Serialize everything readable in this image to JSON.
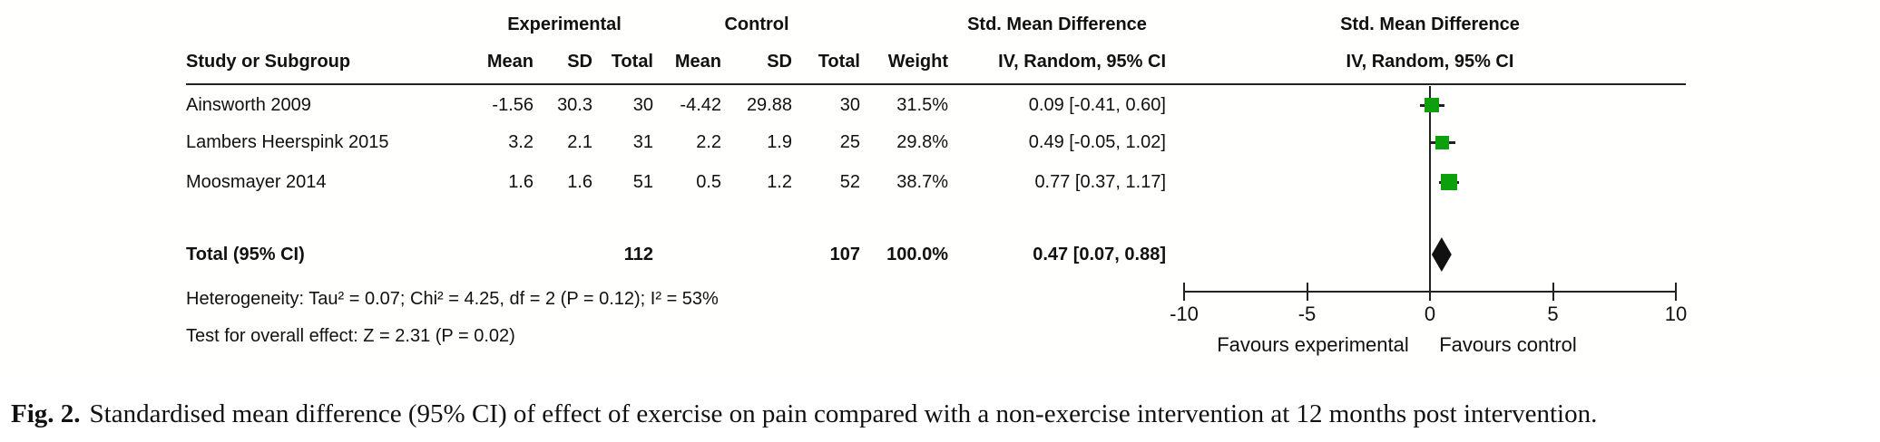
{
  "figure": {
    "table": {
      "group_headers": {
        "experimental": "Experimental",
        "control": "Control",
        "smd_text": "Std. Mean Difference"
      },
      "plot_header": {
        "line1": "Std. Mean Difference",
        "line2": "IV, Random, 95% CI"
      },
      "col_headers": {
        "study": "Study or Subgroup",
        "mean_e": "Mean",
        "sd_e": "SD",
        "total_e": "Total",
        "mean_c": "Mean",
        "sd_c": "SD",
        "total_c": "Total",
        "weight": "Weight",
        "ci": "IV, Random, 95% CI"
      },
      "rows": [
        {
          "study": "Ainsworth 2009",
          "mean_e": "-1.56",
          "sd_e": "30.3",
          "total_e": "30",
          "mean_c": "-4.42",
          "sd_c": "29.88",
          "total_c": "30",
          "weight": "31.5%",
          "ci": "0.09 [-0.41, 0.60]"
        },
        {
          "study": "Lambers Heerspink 2015",
          "mean_e": "3.2",
          "sd_e": "2.1",
          "total_e": "31",
          "mean_c": "2.2",
          "sd_c": "1.9",
          "total_c": "25",
          "weight": "29.8%",
          "ci": "0.49 [-0.05, 1.02]"
        },
        {
          "study": "Moosmayer 2014",
          "mean_e": "1.6",
          "sd_e": "1.6",
          "total_e": "51",
          "mean_c": "0.5",
          "sd_c": "1.2",
          "total_c": "52",
          "weight": "38.7%",
          "ci": "0.77 [0.37, 1.17]"
        }
      ],
      "total_row": {
        "label": "Total (95% CI)",
        "total_e": "112",
        "total_c": "107",
        "weight": "100.0%",
        "ci": "0.47 [0.07, 0.88]"
      },
      "heterogeneity": "Heterogeneity: Tau² = 0.07; Chi² = 4.25, df = 2 (P = 0.12); I² = 53%",
      "overall_effect": "Test for overall effect: Z = 2.31 (P = 0.02)"
    },
    "axis": {
      "favours_left": "Favours experimental",
      "favours_right": "Favours control"
    }
  },
  "caption": {
    "label": "Fig. 2.",
    "text": "Standardised mean difference (95% CI) of effect of exercise on pain compared with a non-exercise intervention at 12 months post intervention."
  },
  "chart_data": {
    "type": "forest",
    "title": "Std. Mean Difference, IV, Random, 95% CI",
    "studies": [
      {
        "name": "Ainsworth 2009",
        "smd": 0.09,
        "ci_low": -0.41,
        "ci_high": 0.6,
        "weight_pct": 31.5
      },
      {
        "name": "Lambers Heerspink 2015",
        "smd": 0.49,
        "ci_low": -0.05,
        "ci_high": 1.02,
        "weight_pct": 29.8
      },
      {
        "name": "Moosmayer 2014",
        "smd": 0.77,
        "ci_low": 0.37,
        "ci_high": 1.17,
        "weight_pct": 38.7
      }
    ],
    "total": {
      "name": "Total (95% CI)",
      "smd": 0.47,
      "ci_low": 0.07,
      "ci_high": 0.88,
      "weight_pct": 100.0
    },
    "heterogeneity": {
      "tau2": 0.07,
      "chi2": 4.25,
      "df": 2,
      "p": 0.12,
      "i2_pct": 53
    },
    "overall_effect": {
      "z": 2.31,
      "p": 0.02
    },
    "xlim": [
      -10,
      10
    ],
    "x_ticks": [
      -10,
      -5,
      0,
      5,
      10
    ],
    "xlabel_left": "Favours experimental",
    "xlabel_right": "Favours control",
    "marker_color": "#0ca00c",
    "line_color": "#222222"
  }
}
